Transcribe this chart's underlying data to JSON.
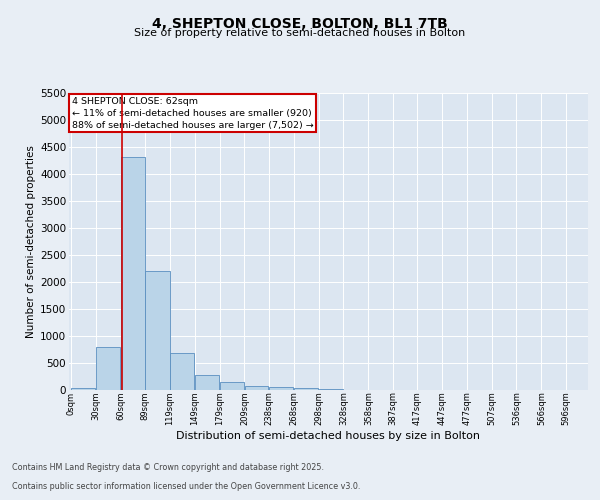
{
  "title": "4, SHEPTON CLOSE, BOLTON, BL1 7TB",
  "subtitle": "Size of property relative to semi-detached houses in Bolton",
  "xlabel": "Distribution of semi-detached houses by size in Bolton",
  "ylabel": "Number of semi-detached properties",
  "footer_line1": "Contains HM Land Registry data © Crown copyright and database right 2025.",
  "footer_line2": "Contains public sector information licensed under the Open Government Licence v3.0.",
  "annotation_title": "4 SHEPTON CLOSE: 62sqm",
  "annotation_line1": "← 11% of semi-detached houses are smaller (920)",
  "annotation_line2": "88% of semi-detached houses are larger (7,502) →",
  "property_size": 62,
  "bin_starts": [
    0,
    30,
    60,
    89,
    119,
    149,
    179,
    209,
    238,
    268,
    298,
    328,
    358,
    387,
    417,
    447,
    477,
    507,
    536,
    566
  ],
  "bin_widths": [
    30,
    30,
    29,
    30,
    30,
    30,
    30,
    29,
    30,
    30,
    30,
    30,
    29,
    30,
    30,
    30,
    30,
    29,
    30,
    30
  ],
  "bar_values": [
    30,
    800,
    4300,
    2200,
    680,
    280,
    150,
    80,
    60,
    30,
    10,
    0,
    0,
    0,
    0,
    0,
    0,
    0,
    0,
    0
  ],
  "tick_labels": [
    "0sqm",
    "30sqm",
    "60sqm",
    "89sqm",
    "119sqm",
    "149sqm",
    "179sqm",
    "209sqm",
    "238sqm",
    "268sqm",
    "298sqm",
    "328sqm",
    "358sqm",
    "387sqm",
    "417sqm",
    "447sqm",
    "477sqm",
    "507sqm",
    "536sqm",
    "566sqm",
    "596sqm"
  ],
  "bar_color": "#bad4e8",
  "bar_edge_color": "#5a8fc0",
  "line_color": "#cc0000",
  "annotation_box_color": "#cc0000",
  "background_color": "#e8eef5",
  "plot_bg_color": "#dce6f1",
  "ylim": [
    0,
    5500
  ],
  "yticks": [
    0,
    500,
    1000,
    1500,
    2000,
    2500,
    3000,
    3500,
    4000,
    4500,
    5000,
    5500
  ],
  "title_fontsize": 10,
  "subtitle_fontsize": 8,
  "ylabel_fontsize": 7.5,
  "xlabel_fontsize": 8,
  "ytick_fontsize": 7.5,
  "xtick_fontsize": 6
}
